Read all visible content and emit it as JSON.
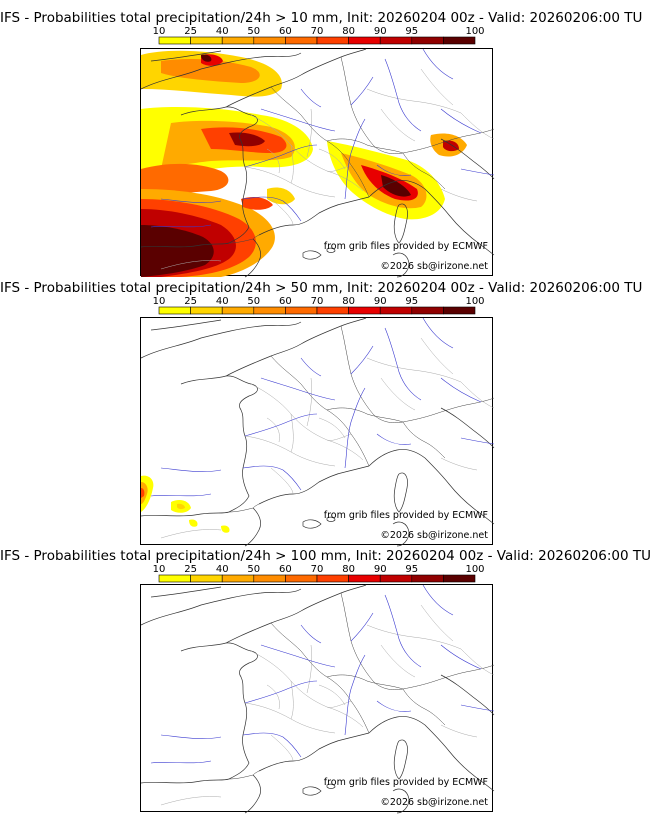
{
  "colorbar": {
    "levels": [
      "10",
      "25",
      "40",
      "50",
      "60",
      "70",
      "80",
      "90",
      "95",
      "100"
    ],
    "colors": [
      "#ffff00",
      "#ffd500",
      "#ffaa00",
      "#ff8c00",
      "#ff6a00",
      "#ff4000",
      "#e80000",
      "#c00000",
      "#900000",
      "#5a0000"
    ]
  },
  "panels": [
    {
      "title": "IFS - Probabilities total precipitation/24h > 10 mm, Init: 20260204 00z - Valid: 20260206:00 TU",
      "credit_source": "from grib files provided by ECMWF",
      "credit_copyright": "©2026 sb@irizone.net"
    },
    {
      "title": "IFS - Probabilities total precipitation/24h > 50 mm, Init: 20260204 00z - Valid: 20260206:00 TU",
      "credit_source": "from grib files provided by ECMWF",
      "credit_copyright": "©2026 sb@irizone.net"
    },
    {
      "title": "IFS - Probabilities total precipitation/24h > 100 mm, Init: 20260204 00z - Valid: 20260206:00 TU",
      "credit_source": "from grib files provided by ECMWF",
      "credit_copyright": "©2026 sb@irizone.net"
    }
  ]
}
